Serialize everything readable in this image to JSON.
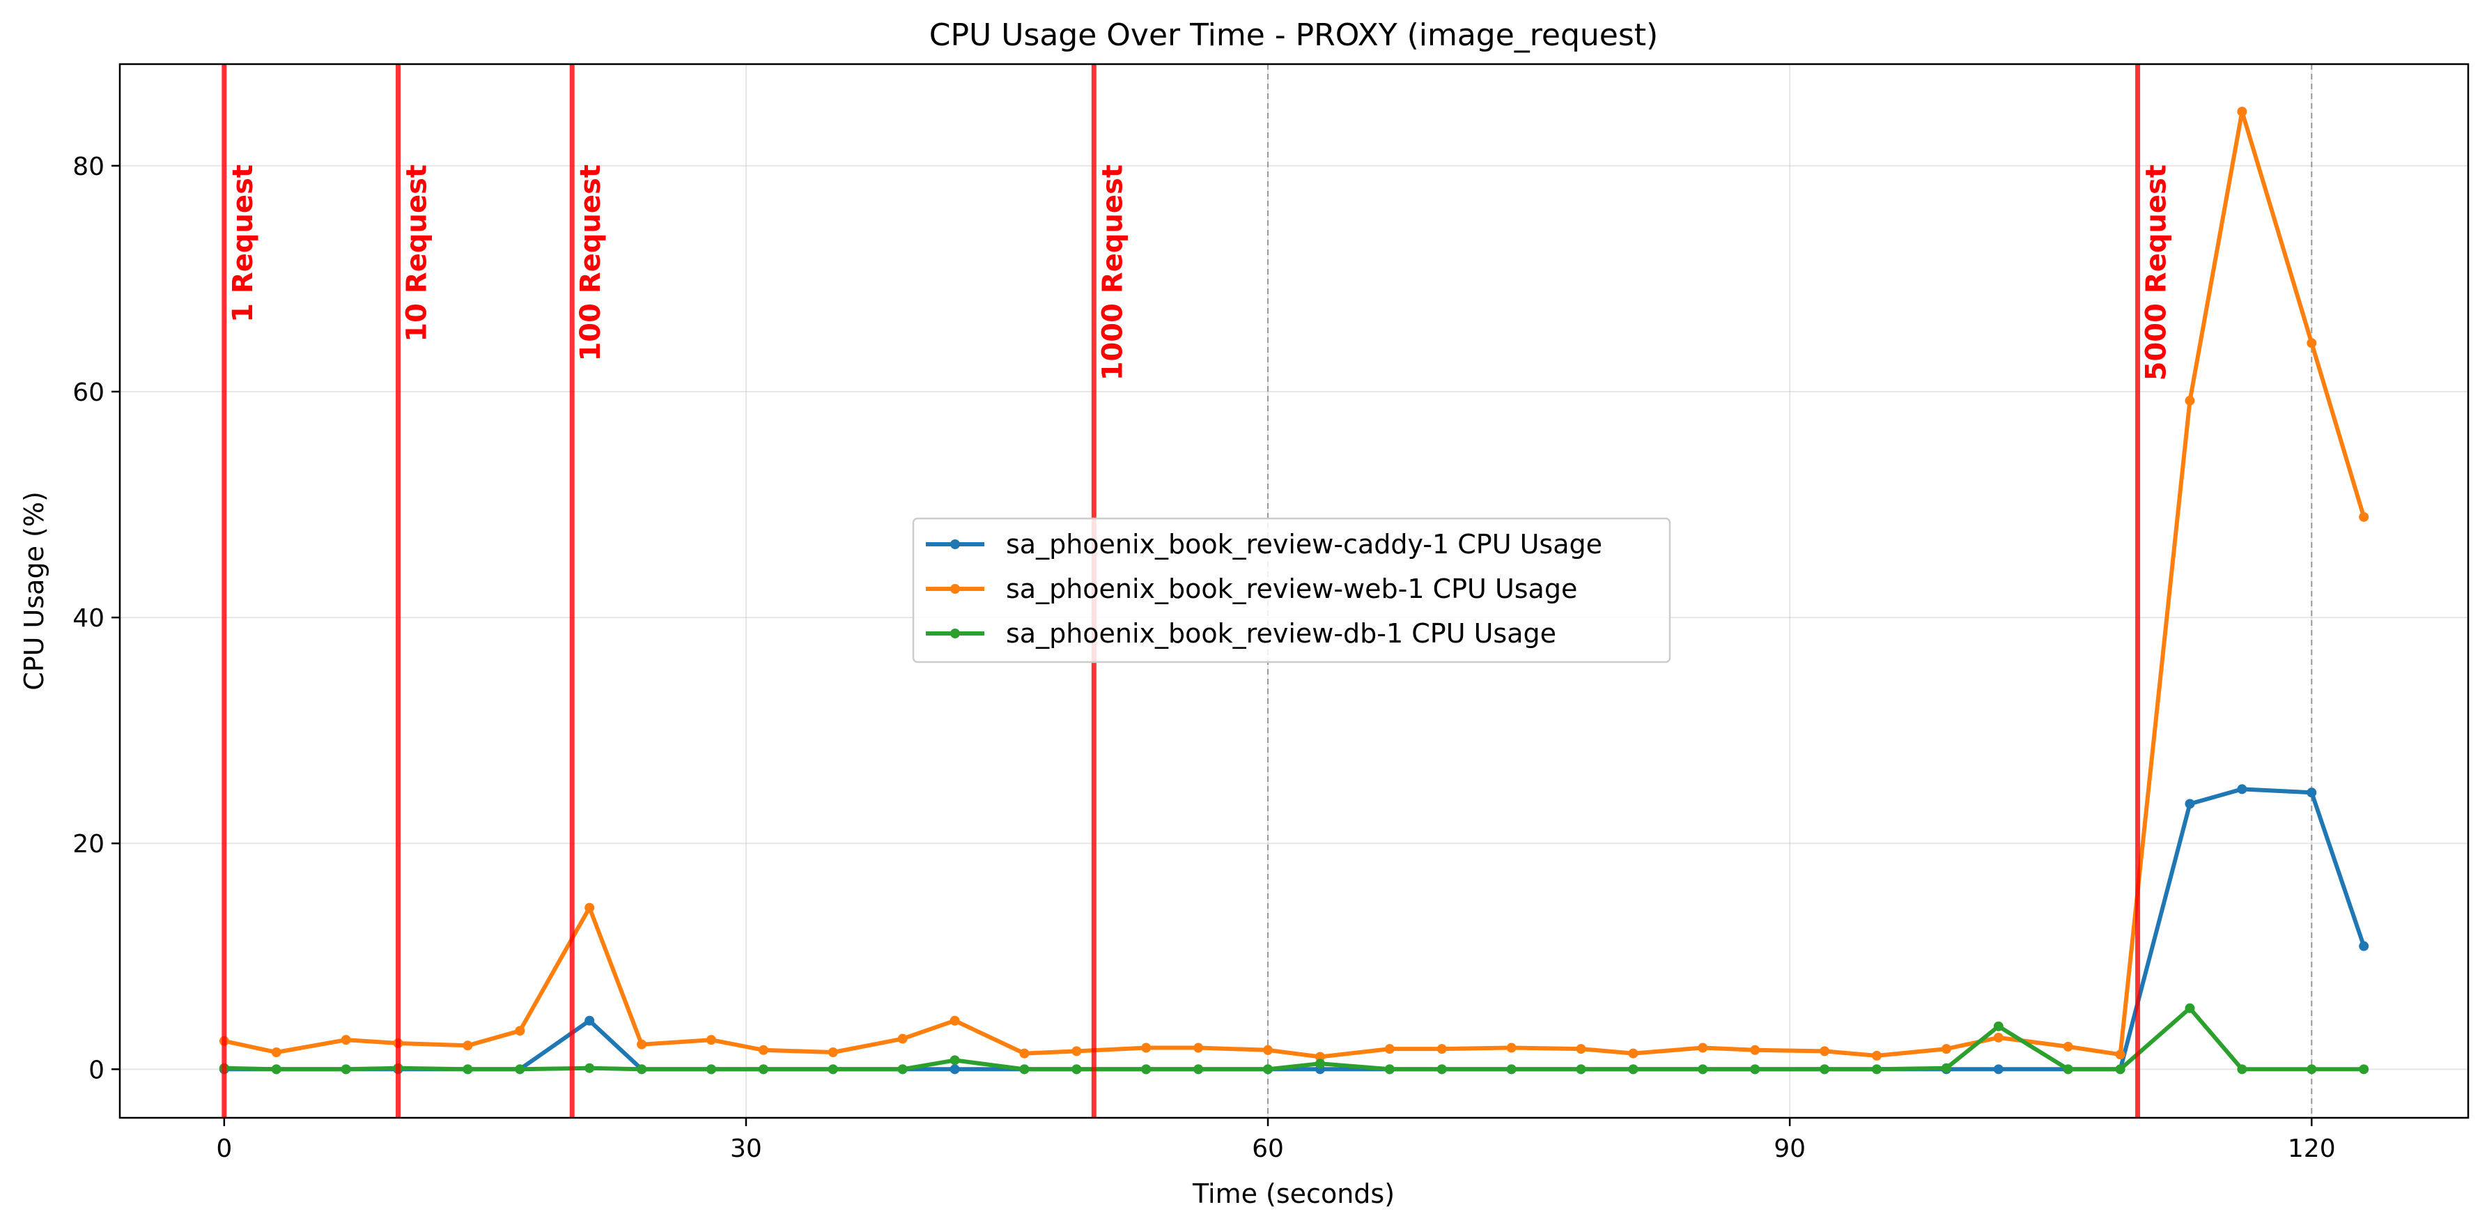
{
  "chart_data": {
    "type": "line",
    "title": "CPU Usage Over Time - PROXY (image_request)",
    "xlabel": "Time (seconds)",
    "ylabel": "CPU Usage (%)",
    "xlim": [
      -6,
      129
    ],
    "ylim": [
      -4.3,
      89
    ],
    "xticks": [
      0,
      30,
      60,
      90,
      120
    ],
    "yticks": [
      0,
      20,
      40,
      60,
      80
    ],
    "grid": true,
    "legend_position": "center",
    "x": [
      0,
      3,
      7,
      10,
      14,
      17,
      21,
      24,
      28,
      31,
      35,
      39,
      42,
      46,
      49,
      53,
      56,
      60,
      63,
      67,
      70,
      74,
      78,
      81,
      85,
      88,
      92,
      95,
      99,
      102,
      106,
      109,
      113,
      116,
      120,
      123
    ],
    "series": [
      {
        "name": "sa_phoenix_book_review-caddy-1 CPU Usage",
        "color": "#1f77b4",
        "values": [
          0,
          0,
          0,
          0,
          0,
          0,
          4.3,
          0,
          0,
          0,
          0,
          0,
          0,
          0,
          0,
          0,
          0,
          0,
          0,
          0,
          0,
          0,
          0,
          0,
          0,
          0,
          0,
          0,
          0,
          0,
          0,
          0,
          23.5,
          24.8,
          24.5,
          10.9
        ]
      },
      {
        "name": "sa_phoenix_book_review-web-1 CPU Usage",
        "color": "#ff7f0e",
        "values": [
          2.5,
          1.5,
          2.6,
          2.3,
          2.1,
          3.4,
          14.3,
          2.2,
          2.6,
          1.7,
          1.5,
          2.7,
          4.3,
          1.4,
          1.6,
          1.9,
          1.9,
          1.7,
          1.1,
          1.8,
          1.8,
          1.9,
          1.8,
          1.4,
          1.9,
          1.7,
          1.6,
          1.2,
          1.8,
          2.8,
          2.0,
          1.3,
          59.2,
          84.8,
          64.3,
          48.9
        ]
      },
      {
        "name": "sa_phoenix_book_review-db-1 CPU Usage",
        "color": "#2ca02c",
        "values": [
          0.1,
          0.0,
          0.0,
          0.1,
          0.0,
          0.0,
          0.1,
          0.0,
          0.0,
          0.0,
          0.0,
          0.0,
          0.8,
          0.0,
          0.0,
          0.0,
          0.0,
          0.0,
          0.5,
          0.0,
          0.0,
          0.0,
          0.0,
          0.0,
          0.0,
          0.0,
          0.0,
          0.0,
          0.1,
          3.8,
          0.0,
          0.0,
          5.4,
          0.0,
          0.0,
          0.0
        ]
      }
    ],
    "markers": [
      {
        "x": 0,
        "label": "1 Request"
      },
      {
        "x": 10,
        "label": "10 Request"
      },
      {
        "x": 20,
        "label": "100 Request"
      },
      {
        "x": 50,
        "label": "1000 Request"
      },
      {
        "x": 110,
        "label": "5000 Request"
      }
    ],
    "dashed_vlines": [
      60,
      120
    ],
    "marker_color": "#ff0000",
    "dashed_line_color": "#999999"
  }
}
